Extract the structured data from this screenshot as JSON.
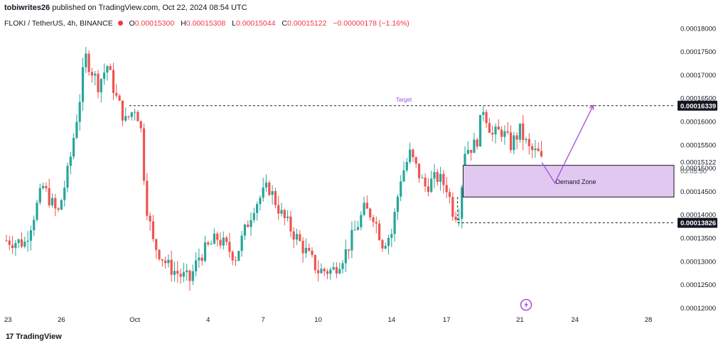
{
  "header": {
    "author": "tobiwrites26",
    "published_text": "published on TradingView.com, Oct 22, 2024 08:54 UTC"
  },
  "symbol": {
    "name": "FLOKI / TetherUS, 4h, BINANCE",
    "open_label": "O",
    "open": "0.00015300",
    "high_label": "H",
    "high": "0.00015308",
    "low_label": "L",
    "low": "0.00015044",
    "close_label": "C",
    "close": "0.00015122",
    "change": "−0.00000178 (−1.16%)"
  },
  "footer": {
    "logo_text": "TradingView"
  },
  "colors": {
    "up": "#26a69a",
    "down": "#ef5350",
    "zone_fill": "#e1c8f0",
    "arrow": "#a64dd9"
  },
  "chart_data": {
    "type": "candlestick",
    "ylim": [
      0.000119,
      0.0001815
    ],
    "y_ticks": [
      "0.00018000",
      "0.00017500",
      "0.00017000",
      "0.00016500",
      "0.00016000",
      "0.00015500",
      "0.00015000",
      "0.00014500",
      "0.00014000",
      "0.00013500",
      "0.00013000",
      "0.00012500",
      "0.00012000"
    ],
    "y_tick_values": [
      0.00018,
      0.000175,
      0.00017,
      0.000165,
      0.00016,
      0.000155,
      0.00015,
      0.000145,
      0.00014,
      0.000135,
      0.00013,
      0.000125,
      0.00012
    ],
    "x_ticks": [
      {
        "label": "23",
        "day": 23
      },
      {
        "label": "26",
        "day": 26
      },
      {
        "label": "Oct",
        "day": 30
      },
      {
        "label": "4",
        "day": 34
      },
      {
        "label": "7",
        "day": 37
      },
      {
        "label": "10",
        "day": 40
      },
      {
        "label": "14",
        "day": 44
      },
      {
        "label": "17",
        "day": 47
      },
      {
        "label": "21",
        "day": 51
      },
      {
        "label": "24",
        "day": 54
      },
      {
        "label": "28",
        "day": 58
      }
    ],
    "x_axis_note": "days counted from Sep 1, 2024",
    "anchors": [
      [
        23.0,
        0.0001345
      ],
      [
        24.0,
        0.000134
      ],
      [
        25.0,
        0.000146
      ],
      [
        25.8,
        0.00014
      ],
      [
        26.4,
        0.00015
      ],
      [
        27.0,
        0.000165
      ],
      [
        27.3,
        0.000174
      ],
      [
        28.0,
        0.000168
      ],
      [
        28.5,
        0.000172
      ],
      [
        29.0,
        0.000165
      ],
      [
        29.5,
        0.00016
      ],
      [
        30.0,
        0.000163
      ],
      [
        30.3,
        0.00016
      ],
      [
        30.6,
        0.000143
      ],
      [
        31.0,
        0.000134
      ],
      [
        31.8,
        0.000129
      ],
      [
        32.5,
        0.000127
      ],
      [
        33.0,
        0.000126
      ],
      [
        33.5,
        0.000131
      ],
      [
        34.5,
        0.000135
      ],
      [
        35.5,
        0.000131
      ],
      [
        36.5,
        0.000142
      ],
      [
        37.3,
        0.000146
      ],
      [
        38.0,
        0.00014
      ],
      [
        39.0,
        0.000134
      ],
      [
        40.0,
        0.000128
      ],
      [
        40.8,
        0.000128
      ],
      [
        41.5,
        0.000132
      ],
      [
        42.5,
        0.000141
      ],
      [
        43.0,
        0.00014
      ],
      [
        43.5,
        0.000134
      ],
      [
        44.0,
        0.000136
      ],
      [
        44.5,
        0.000148
      ],
      [
        45.0,
        0.000153
      ],
      [
        45.8,
        0.000146
      ],
      [
        46.5,
        0.000148
      ],
      [
        47.0,
        0.000146
      ],
      [
        47.4,
        0.00014
      ],
      [
        47.7,
        0.000141
      ],
      [
        48.0,
        0.000154
      ],
      [
        48.6,
        0.000155
      ],
      [
        49.0,
        0.000163
      ],
      [
        49.5,
        0.000157
      ],
      [
        50.0,
        0.000158
      ],
      [
        50.5,
        0.000155
      ],
      [
        51.0,
        0.000158
      ],
      [
        51.5,
        0.000154
      ],
      [
        52.0,
        0.000153
      ],
      [
        52.2,
        0.0001512
      ]
    ],
    "current_price_label": "0.00015122",
    "countdown_label": "03:05:50",
    "annotations": {
      "target": {
        "label": "Target",
        "price_label": "0.00016339",
        "price": 0.00016339,
        "start_day": 29.7
      },
      "support": {
        "price_label": "0.00013826",
        "price": 0.00013826,
        "start_day": 47.6
      },
      "demand_zone": {
        "label": "Demand Zone",
        "low": 0.0001438,
        "high": 0.0001506,
        "start_day": 47.9
      },
      "projection": [
        [
          52.2,
          0.0001512
        ],
        [
          52.9,
          0.0001468
        ],
        [
          55.0,
          0.0001635
        ]
      ]
    }
  }
}
